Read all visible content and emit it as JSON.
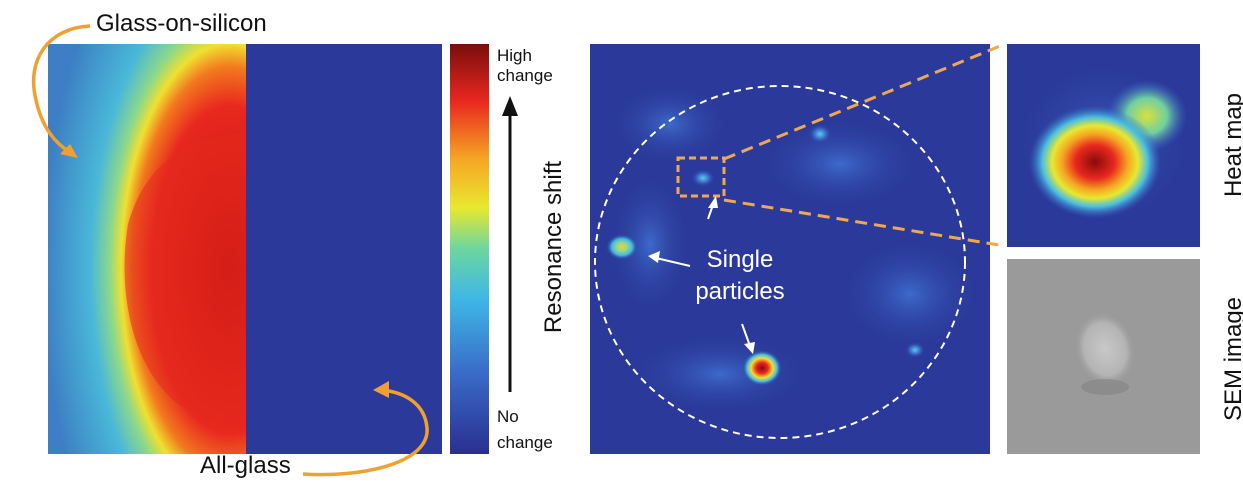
{
  "left_panel": {
    "glass_on_silicon_label": "Glass-on-silicon",
    "all_glass_label": "All-glass"
  },
  "colorbar": {
    "top_label_line1": "High",
    "top_label_line2": "change",
    "bottom_label_line1": "No",
    "bottom_label_line2": "change",
    "axis_label": "Resonance shift",
    "colors": [
      "#2a2f8f",
      "#3a6cc8",
      "#3fb8e6",
      "#6cd6a0",
      "#e8e830",
      "#f5a623",
      "#e8281f",
      "#7a0d0d"
    ]
  },
  "center_panel": {
    "annotation_line1": "Single",
    "annotation_line2": "particles"
  },
  "right_panels": {
    "heat_map_label": "Heat map",
    "sem_label": "SEM image"
  },
  "colors": {
    "arrow_orange": "#f0a030",
    "background_blue": "#2b3a9a",
    "dashed_zoom": "#f0a850"
  }
}
